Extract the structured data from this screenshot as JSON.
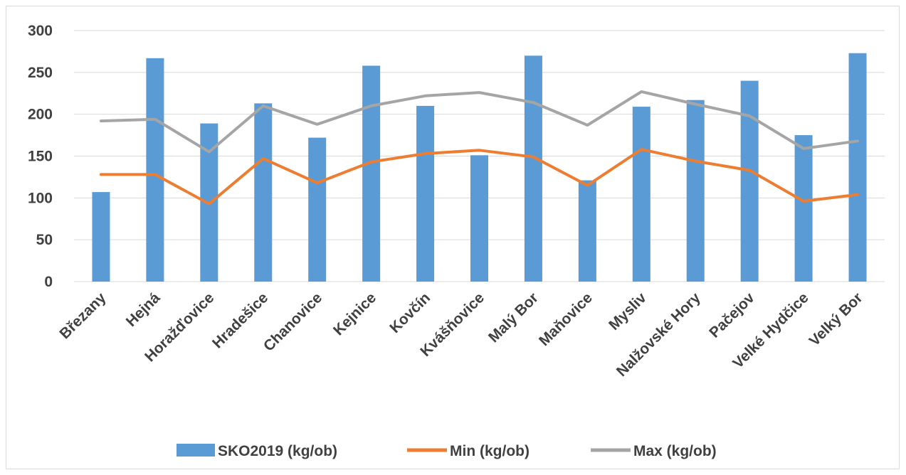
{
  "colors": {
    "bar": "#5b9bd5",
    "min": "#ed7d31",
    "max": "#a5a5a5",
    "grid": "#d9d9d9",
    "text": "#404040"
  },
  "chart_data": {
    "type": "bar",
    "title": "",
    "xlabel": "",
    "ylabel": "",
    "ylim": [
      0,
      300
    ],
    "yticks": [
      0,
      50,
      100,
      150,
      200,
      250,
      300
    ],
    "grid": true,
    "legend_position": "bottom",
    "categories": [
      "Březany",
      "Hejná",
      "Horažďovice",
      "Hradešice",
      "Chanovice",
      "Kejnice",
      "Kovčín",
      "Kvášňovice",
      "Malý Bor",
      "Maňovice",
      "Mysliv",
      "Nalžovské Hory",
      "Pačejov",
      "Velké Hydčice",
      "Velký Bor"
    ],
    "series": [
      {
        "name": "SKO2019 (kg/ob)",
        "type": "bar",
        "values": [
          107,
          267,
          189,
          213,
          172,
          258,
          210,
          151,
          270,
          121,
          209,
          217,
          240,
          175,
          273
        ]
      },
      {
        "name": "Min (kg/ob)",
        "type": "line",
        "values": [
          128,
          128,
          93,
          147,
          118,
          143,
          153,
          157,
          149,
          115,
          158,
          144,
          133,
          96,
          104
        ]
      },
      {
        "name": "Max (kg/ob)",
        "type": "line",
        "values": [
          192,
          194,
          155,
          210,
          188,
          210,
          222,
          226,
          214,
          187,
          227,
          212,
          198,
          159,
          168
        ]
      }
    ]
  }
}
